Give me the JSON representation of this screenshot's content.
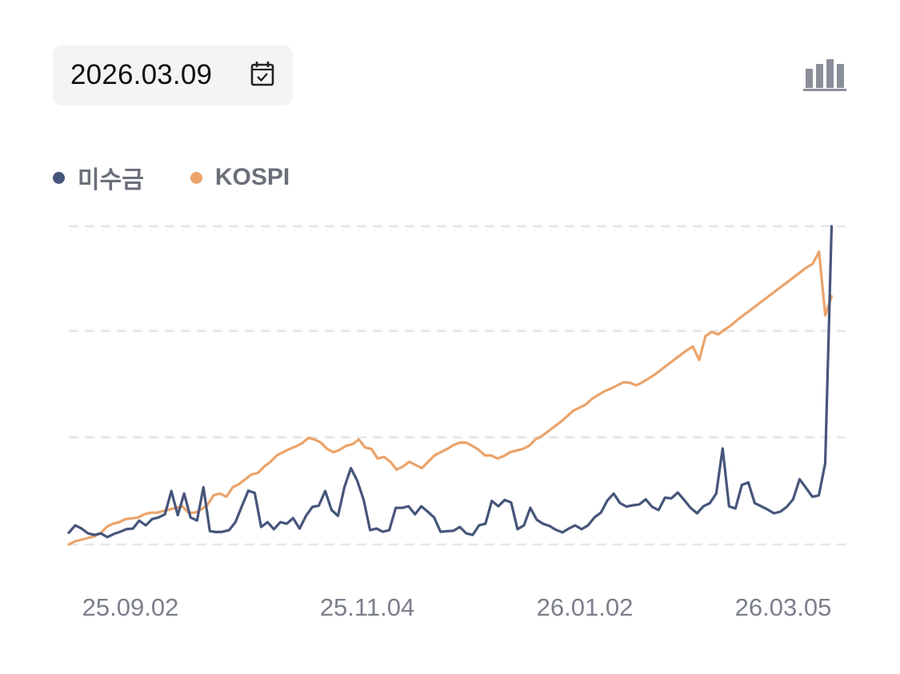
{
  "header": {
    "date": "2026.03.09",
    "calendar_icon": "calendar-check-icon",
    "chart_toggle_icon": "bar-chart-icon"
  },
  "legend": [
    {
      "label": "미수금",
      "color": "#46557a"
    },
    {
      "label": "KOSPI",
      "color": "#eba36a"
    }
  ],
  "chart_data": {
    "type": "line",
    "title": "",
    "xlabel": "",
    "ylabel": "",
    "x_ticks": [
      "25.09.02",
      "25.11.04",
      "26.01.02",
      "26.03.05"
    ],
    "grid": true,
    "grid_style": "dashed horizontal",
    "y_axis_labels_shown": false,
    "legend_position": "top-left",
    "series": [
      {
        "name": "미수금",
        "color": "#46557a",
        "values": [
          0.037,
          0.06,
          0.05,
          0.035,
          0.03,
          0.035,
          0.023,
          0.033,
          0.04,
          0.048,
          0.05,
          0.075,
          0.06,
          0.08,
          0.085,
          0.095,
          0.168,
          0.092,
          0.16,
          0.085,
          0.075,
          0.18,
          0.042,
          0.039,
          0.04,
          0.045,
          0.07,
          0.12,
          0.169,
          0.162,
          0.055,
          0.07,
          0.048,
          0.07,
          0.065,
          0.083,
          0.05,
          0.09,
          0.118,
          0.122,
          0.168,
          0.108,
          0.09,
          0.18,
          0.24,
          0.2,
          0.14,
          0.045,
          0.05,
          0.04,
          0.045,
          0.115,
          0.115,
          0.12,
          0.095,
          0.12,
          0.103,
          0.085,
          0.04,
          0.042,
          0.043,
          0.055,
          0.035,
          0.03,
          0.06,
          0.065,
          0.137,
          0.12,
          0.14,
          0.132,
          0.048,
          0.06,
          0.115,
          0.078,
          0.065,
          0.058,
          0.046,
          0.038,
          0.05,
          0.06,
          0.048,
          0.06,
          0.085,
          0.1,
          0.138,
          0.16,
          0.13,
          0.119,
          0.123,
          0.126,
          0.142,
          0.118,
          0.108,
          0.147,
          0.145,
          0.163,
          0.14,
          0.115,
          0.098,
          0.12,
          0.13,
          0.16,
          0.302,
          0.12,
          0.113,
          0.187,
          0.195,
          0.13,
          0.12,
          0.11,
          0.098,
          0.103,
          0.118,
          0.142,
          0.205,
          0.178,
          0.15,
          0.154,
          0.255,
          1.0
        ],
        "x_end_fraction": 0.982
      },
      {
        "name": "KOSPI",
        "color": "#eba36a",
        "values": [
          0.0,
          0.01,
          0.015,
          0.02,
          0.025,
          0.035,
          0.055,
          0.065,
          0.07,
          0.08,
          0.082,
          0.085,
          0.095,
          0.1,
          0.1,
          0.105,
          0.11,
          0.115,
          0.12,
          0.1,
          0.1,
          0.11,
          0.125,
          0.155,
          0.16,
          0.15,
          0.18,
          0.19,
          0.205,
          0.22,
          0.225,
          0.245,
          0.26,
          0.28,
          0.29,
          0.3,
          0.308,
          0.318,
          0.335,
          0.33,
          0.32,
          0.3,
          0.29,
          0.298,
          0.31,
          0.315,
          0.33,
          0.305,
          0.3,
          0.27,
          0.275,
          0.26,
          0.235,
          0.245,
          0.26,
          0.25,
          0.24,
          0.26,
          0.28,
          0.29,
          0.3,
          0.312,
          0.32,
          0.32,
          0.31,
          0.298,
          0.28,
          0.28,
          0.27,
          0.278,
          0.29,
          0.295,
          0.3,
          0.31,
          0.33,
          0.34,
          0.355,
          0.37,
          0.385,
          0.402,
          0.42,
          0.43,
          0.44,
          0.458,
          0.47,
          0.482,
          0.49,
          0.5,
          0.51,
          0.508,
          0.5,
          0.51,
          0.522,
          0.535,
          0.55,
          0.565,
          0.58,
          0.595,
          0.61,
          0.622,
          0.58,
          0.655,
          0.668,
          0.66,
          0.675,
          0.688,
          0.705,
          0.72,
          0.735,
          0.75,
          0.765,
          0.78,
          0.795,
          0.81,
          0.825,
          0.84,
          0.855,
          0.87,
          0.882,
          0.92,
          0.72,
          0.78
        ],
        "x_end_fraction": 0.982
      }
    ]
  }
}
